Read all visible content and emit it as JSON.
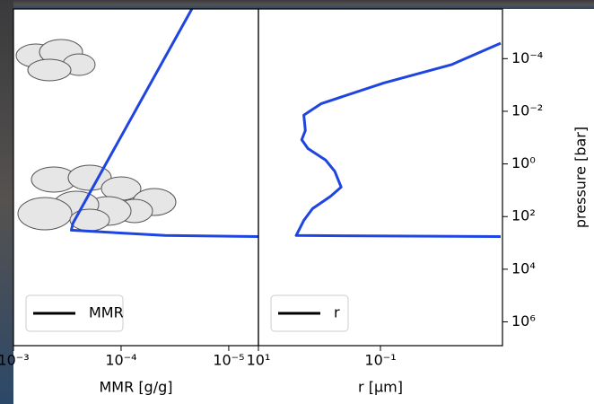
{
  "chart_data": [
    {
      "type": "line",
      "xlabel": "MMR [g/g]",
      "xscale": "log",
      "yscale": "log",
      "y_inverted": true,
      "xlim": [
        5.3e-06,
        0.001
      ],
      "ylim": [
        1.3e-06,
        8000000
      ],
      "xticks": [
        {
          "value": 1e-05,
          "label": "10⁻⁵"
        },
        {
          "value": 0.0001,
          "label": "10⁻⁴"
        },
        {
          "value": 0.001,
          "label": "10⁻³"
        }
      ],
      "legend": "lower left",
      "legend_color": "#000000",
      "series": [
        {
          "name": "MMR",
          "color": "#1f45e0",
          "x": [
            2.2e-05,
            0.00028,
            0.00029,
            3.9e-05,
            5.3e-06
          ],
          "y": [
            1.3e-06,
            178,
            330,
            525,
            575
          ]
        }
      ]
    },
    {
      "type": "line",
      "xlabel": "r [μm]",
      "ylabel": "pressure [bar]",
      "xscale": "log",
      "yscale": "log",
      "y_inverted": true,
      "xlim": [
        0.001,
        10
      ],
      "ylim": [
        1.3e-06,
        8000000
      ],
      "xticks": [
        {
          "value": 0.1,
          "label": "10⁻¹"
        },
        {
          "value": 10,
          "label": "10¹"
        }
      ],
      "yticks": [
        {
          "value": 0.0001,
          "label": "10⁻⁴"
        },
        {
          "value": 0.01,
          "label": "10⁻²"
        },
        {
          "value": 1,
          "label": "10⁰"
        },
        {
          "value": 100,
          "label": "10²"
        },
        {
          "value": 10000,
          "label": "10⁴"
        },
        {
          "value": 1000000,
          "label": "10⁶"
        }
      ],
      "legend": "lower left",
      "legend_color": "#000000",
      "series": [
        {
          "name": "r",
          "color": "#1f45e0",
          "x": [
            0.00107,
            0.0069,
            0.087,
            0.93,
            1.8,
            1.7,
            1.95,
            1.55,
            0.79,
            0.56,
            0.44,
            0.66,
            1.3,
            1.8,
            2.4,
            0.00107
          ],
          "y": [
            2.6e-05,
            0.00017,
            0.00083,
            0.0051,
            0.014,
            0.054,
            0.12,
            0.26,
            0.72,
            1.9,
            7.6,
            17,
            50,
            140,
            525,
            575
          ]
        }
      ]
    }
  ]
}
